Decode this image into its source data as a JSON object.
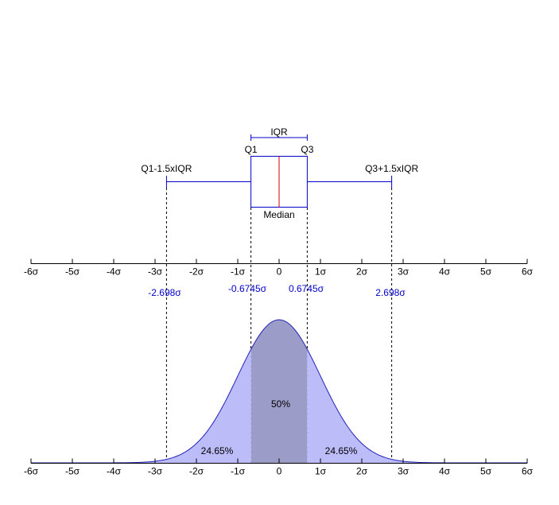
{
  "colors": {
    "box": "#0000cc",
    "median": "#cc0000",
    "axis": "#000000",
    "fill_tails": "#bbbcf8",
    "fill_center": "#9c9cc8",
    "curve": "#2222bb",
    "highlight_text": "#0000cc"
  },
  "boxplot": {
    "iqr_label": "IQR",
    "q1_label": "Q1",
    "q3_label": "Q3",
    "lower_whisker_label": "Q1-1.5xIQR",
    "upper_whisker_label": "Q3+1.5xIQR",
    "median_label": "Median",
    "q1": -0.6745,
    "q3": 0.6745,
    "median": 0,
    "lower_whisker": -2.698,
    "upper_whisker": 2.698
  },
  "axis": {
    "min": -6,
    "max": 6,
    "ticks": [
      "-6σ",
      "-5σ",
      "-4σ",
      "-3σ",
      "-2σ",
      "-1σ",
      "0",
      "1σ",
      "2σ",
      "3σ",
      "4σ",
      "5σ",
      "6σ"
    ]
  },
  "markers": [
    {
      "value": -2.698,
      "label": "-2.698σ"
    },
    {
      "value": -0.6745,
      "label": "-0.6745σ"
    },
    {
      "value": 0.6745,
      "label": "0.6745σ"
    },
    {
      "value": 2.698,
      "label": "2.698σ"
    }
  ],
  "distribution": {
    "left_tail_pct": "24.65%",
    "center_pct": "50%",
    "right_tail_pct": "24.65%"
  }
}
